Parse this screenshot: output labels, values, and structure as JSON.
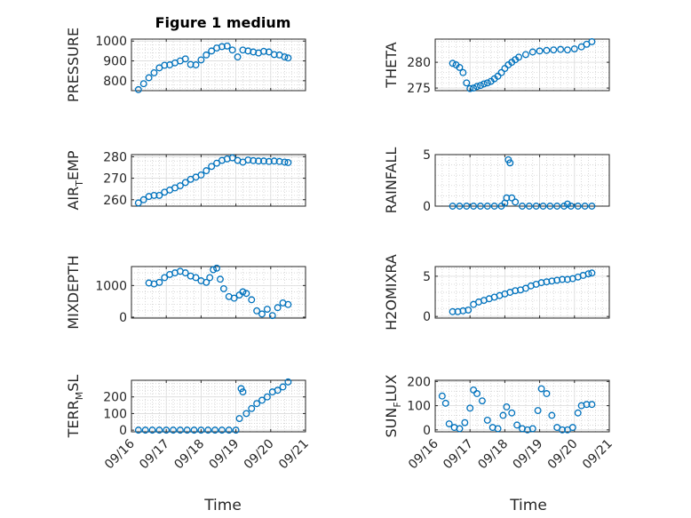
{
  "figure": {
    "title": "Figure 1 medium",
    "x_label": "Time",
    "x_tick_labels": [
      "09/16",
      "09/17",
      "09/18",
      "09/19",
      "09/20",
      "09/21"
    ],
    "marker_color": "#0072BD",
    "grid_color": "#c9c9c9"
  },
  "chart_data": [
    {
      "type": "scatter",
      "title": "Figure 1 medium",
      "ylabel": "PRESSURE",
      "ylabel_main": "PRESSURE",
      "ylabel_sub": "",
      "ylabel_tail": "",
      "xlabel": "",
      "xlim": [
        0,
        5
      ],
      "ylim": [
        750,
        1010
      ],
      "yticks": [
        800,
        900,
        1000
      ],
      "ytick_labels": [
        "800",
        "900",
        "1000"
      ],
      "x": [
        0.2,
        0.35,
        0.5,
        0.65,
        0.8,
        0.95,
        1.1,
        1.25,
        1.4,
        1.55,
        1.7,
        1.85,
        2.0,
        2.15,
        2.3,
        2.45,
        2.6,
        2.75,
        2.9,
        3.05,
        3.2,
        3.35,
        3.5,
        3.65,
        3.8,
        3.95,
        4.1,
        4.25,
        4.4,
        4.5
      ],
      "y": [
        755,
        785,
        815,
        840,
        865,
        878,
        880,
        890,
        900,
        910,
        882,
        880,
        905,
        930,
        950,
        965,
        972,
        975,
        955,
        920,
        955,
        950,
        945,
        940,
        948,
        945,
        932,
        930,
        920,
        915
      ]
    },
    {
      "type": "scatter",
      "title": "",
      "ylabel": "THETA",
      "ylabel_main": "THETA",
      "ylabel_sub": "",
      "ylabel_tail": "",
      "xlabel": "",
      "xlim": [
        0,
        5
      ],
      "ylim": [
        274.5,
        284.5
      ],
      "yticks": [
        275,
        280
      ],
      "ytick_labels": [
        "275",
        "280"
      ],
      "x": [
        0.5,
        0.6,
        0.7,
        0.8,
        0.9,
        1.0,
        1.1,
        1.2,
        1.3,
        1.4,
        1.5,
        1.6,
        1.7,
        1.8,
        1.9,
        2.0,
        2.1,
        2.2,
        2.3,
        2.4,
        2.6,
        2.8,
        3.0,
        3.2,
        3.4,
        3.6,
        3.8,
        4.0,
        4.2,
        4.35,
        4.5
      ],
      "y": [
        279.8,
        279.5,
        279,
        278,
        276,
        274.9,
        275,
        275.3,
        275.5,
        275.8,
        276,
        276.3,
        276.8,
        277.3,
        278,
        278.8,
        279.5,
        280,
        280.5,
        281,
        281.5,
        282,
        282.2,
        282.3,
        282.4,
        282.5,
        282.4,
        282.6,
        283,
        283.5,
        284
      ]
    },
    {
      "type": "scatter",
      "title": "",
      "ylabel": "AIR_TEMP",
      "ylabel_main": "AIR",
      "ylabel_sub": "T",
      "ylabel_tail": "EMP",
      "xlabel": "",
      "xlim": [
        0,
        5
      ],
      "ylim": [
        257,
        281
      ],
      "yticks": [
        260,
        270,
        280
      ],
      "ytick_labels": [
        "260",
        "270",
        "280"
      ],
      "x": [
        0.2,
        0.35,
        0.5,
        0.65,
        0.8,
        0.95,
        1.1,
        1.25,
        1.4,
        1.55,
        1.7,
        1.85,
        2.0,
        2.15,
        2.3,
        2.45,
        2.6,
        2.75,
        2.9,
        3.05,
        3.2,
        3.35,
        3.5,
        3.65,
        3.8,
        3.95,
        4.1,
        4.25,
        4.4,
        4.5
      ],
      "y": [
        258.5,
        260,
        261.5,
        262,
        262,
        263.5,
        264.5,
        265.5,
        266.5,
        268,
        269.5,
        270.5,
        271.5,
        273.5,
        275.5,
        277,
        278.3,
        279,
        279.5,
        278.3,
        277.5,
        278.5,
        278.2,
        278,
        278,
        277.8,
        278,
        277.8,
        277.5,
        277.3
      ]
    },
    {
      "type": "scatter",
      "title": "",
      "ylabel": "RAINFALL",
      "ylabel_main": "RAINFALL",
      "ylabel_sub": "",
      "ylabel_tail": "",
      "xlabel": "",
      "xlim": [
        0,
        5
      ],
      "ylim": [
        0,
        5
      ],
      "yticks": [
        0,
        5
      ],
      "ytick_labels": [
        "0",
        "5"
      ],
      "x": [
        0.5,
        0.7,
        0.9,
        1.1,
        1.3,
        1.5,
        1.7,
        1.9,
        2.0,
        2.05,
        2.1,
        2.15,
        2.2,
        2.3,
        2.5,
        2.7,
        2.9,
        3.1,
        3.3,
        3.5,
        3.7,
        3.8,
        3.9,
        4.1,
        4.3,
        4.5
      ],
      "y": [
        0,
        0,
        0,
        0,
        0,
        0,
        0,
        0,
        0.3,
        0.8,
        4.5,
        4.2,
        0.8,
        0.4,
        0,
        0,
        0,
        0,
        0,
        0,
        0,
        0.2,
        0,
        0,
        0,
        0
      ]
    },
    {
      "type": "scatter",
      "title": "",
      "ylabel": "MIXDEPTH",
      "ylabel_main": "MIXDEPTH",
      "ylabel_sub": "",
      "ylabel_tail": "",
      "xlabel": "",
      "xlim": [
        0,
        5
      ],
      "ylim": [
        -30,
        1600
      ],
      "yticks": [
        0,
        1000
      ],
      "ytick_labels": [
        "0",
        "1000"
      ],
      "x": [
        0.5,
        0.65,
        0.8,
        0.95,
        1.1,
        1.25,
        1.4,
        1.55,
        1.7,
        1.85,
        2.0,
        2.15,
        2.25,
        2.35,
        2.45,
        2.55,
        2.65,
        2.8,
        2.95,
        3.1,
        3.2,
        3.3,
        3.45,
        3.6,
        3.75,
        3.9,
        4.05,
        4.2,
        4.35,
        4.5
      ],
      "y": [
        1080,
        1050,
        1100,
        1250,
        1350,
        1400,
        1450,
        1400,
        1300,
        1250,
        1150,
        1100,
        1250,
        1500,
        1550,
        1200,
        900,
        650,
        600,
        700,
        800,
        750,
        550,
        200,
        100,
        250,
        50,
        300,
        450,
        400
      ]
    },
    {
      "type": "scatter",
      "title": "",
      "ylabel": "H2OMIXRA",
      "ylabel_main": "H2OMIXRA",
      "ylabel_sub": "",
      "ylabel_tail": "",
      "xlabel": "",
      "xlim": [
        0,
        5
      ],
      "ylim": [
        -0.2,
        6.2
      ],
      "yticks": [
        0,
        5
      ],
      "ytick_labels": [
        "0",
        "5"
      ],
      "x": [
        0.5,
        0.65,
        0.8,
        0.95,
        1.1,
        1.25,
        1.4,
        1.55,
        1.7,
        1.85,
        2.0,
        2.15,
        2.3,
        2.45,
        2.6,
        2.75,
        2.9,
        3.05,
        3.2,
        3.35,
        3.5,
        3.65,
        3.8,
        3.95,
        4.1,
        4.25,
        4.4,
        4.5
      ],
      "y": [
        0.6,
        0.6,
        0.7,
        0.8,
        1.5,
        1.8,
        2.0,
        2.2,
        2.4,
        2.6,
        2.8,
        3.0,
        3.2,
        3.3,
        3.5,
        3.8,
        4.0,
        4.2,
        4.3,
        4.4,
        4.5,
        4.6,
        4.6,
        4.7,
        4.9,
        5.1,
        5.3,
        5.4
      ]
    },
    {
      "type": "scatter",
      "title": "",
      "ylabel": "TERR_MSL",
      "ylabel_main": "TERR",
      "ylabel_sub": "M",
      "ylabel_tail": "SL",
      "xlabel": "Time",
      "xlim": [
        0,
        5
      ],
      "ylim": [
        -10,
        300
      ],
      "yticks": [
        0,
        100,
        200
      ],
      "ytick_labels": [
        "0",
        "100",
        "200"
      ],
      "x": [
        0.2,
        0.4,
        0.6,
        0.8,
        1.0,
        1.2,
        1.4,
        1.6,
        1.8,
        2.0,
        2.2,
        2.4,
        2.6,
        2.8,
        3.0,
        3.1,
        3.15,
        3.2,
        3.3,
        3.45,
        3.6,
        3.75,
        3.9,
        4.05,
        4.2,
        4.35,
        4.5
      ],
      "y": [
        0,
        0,
        0,
        0,
        0,
        0,
        0,
        0,
        0,
        0,
        0,
        0,
        0,
        0,
        0,
        70,
        250,
        230,
        100,
        130,
        160,
        180,
        200,
        230,
        240,
        260,
        290
      ]
    },
    {
      "type": "scatter",
      "title": "",
      "ylabel": "SUN_FLUX",
      "ylabel_main": "SUN",
      "ylabel_sub": "F",
      "ylabel_tail": "LUX",
      "xlabel": "Time",
      "xlim": [
        0,
        5
      ],
      "ylim": [
        -8,
        205
      ],
      "yticks": [
        0,
        100,
        200
      ],
      "ytick_labels": [
        "0",
        "100",
        "200"
      ],
      "x": [
        0.2,
        0.3,
        0.4,
        0.55,
        0.7,
        0.85,
        1.0,
        1.1,
        1.2,
        1.35,
        1.5,
        1.65,
        1.8,
        1.95,
        2.05,
        2.2,
        2.35,
        2.5,
        2.65,
        2.8,
        2.95,
        3.05,
        3.2,
        3.35,
        3.5,
        3.65,
        3.8,
        3.95,
        4.1,
        4.2,
        4.35,
        4.5
      ],
      "y": [
        140,
        110,
        25,
        10,
        5,
        30,
        90,
        165,
        150,
        120,
        40,
        10,
        5,
        60,
        95,
        70,
        20,
        5,
        0,
        5,
        80,
        170,
        150,
        60,
        10,
        0,
        0,
        10,
        70,
        100,
        105,
        105
      ]
    }
  ]
}
